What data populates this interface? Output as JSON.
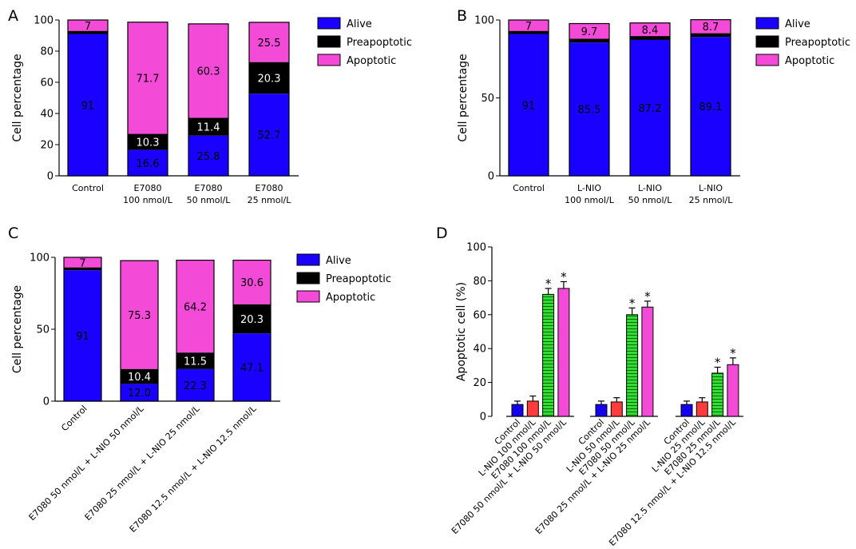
{
  "chart_data": [
    {
      "id": "A",
      "type": "bar",
      "stacked": true,
      "panel_label": "A",
      "ylabel": "Cell percentage",
      "ylim": [
        0,
        100
      ],
      "yticks": [
        0,
        20,
        40,
        60,
        80,
        100
      ],
      "categories": [
        [
          "Control"
        ],
        [
          "E7080",
          "100 nmol/L"
        ],
        [
          "E7080",
          "50 nmol/L"
        ],
        [
          "E7080",
          "25 nmol/L"
        ]
      ],
      "legend_position": "top-right",
      "series": [
        {
          "name": "Alive",
          "color": "#1a00ff",
          "values": [
            91,
            16.6,
            25.8,
            52.7
          ],
          "labels": [
            "91",
            "16.6",
            "25.8",
            "52.7"
          ]
        },
        {
          "name": "Preapoptotic",
          "color": "#000000",
          "values": [
            2,
            10.3,
            11.4,
            20.3
          ],
          "labels": [
            "",
            "10.3",
            "11.4",
            "20.3"
          ]
        },
        {
          "name": "Apoptotic",
          "color": "#f44ad8",
          "values": [
            7,
            71.7,
            60.3,
            25.5
          ],
          "labels": [
            "7",
            "71.7",
            "60.3",
            "25.5"
          ]
        }
      ]
    },
    {
      "id": "B",
      "type": "bar",
      "stacked": true,
      "panel_label": "B",
      "ylabel": "Cell percentage",
      "ylim": [
        0,
        100
      ],
      "yticks": [
        0,
        50,
        100
      ],
      "categories": [
        [
          "Control"
        ],
        [
          "L-NIO",
          "100 nmol/L"
        ],
        [
          "L-NIO",
          "50 nmol/L"
        ],
        [
          "L-NIO",
          "25 nmol/L"
        ]
      ],
      "legend_position": "top-right",
      "series": [
        {
          "name": "Alive",
          "color": "#1a00ff",
          "values": [
            91,
            85.5,
            87.2,
            89.1
          ],
          "labels": [
            "91",
            "85.5",
            "87.2",
            "89.1"
          ]
        },
        {
          "name": "Preapoptotic",
          "color": "#000000",
          "values": [
            2,
            2.5,
            2.5,
            2.4
          ],
          "labels": [
            "",
            "",
            "",
            ""
          ]
        },
        {
          "name": "Apoptotic",
          "color": "#f44ad8",
          "values": [
            7,
            9.7,
            8.4,
            8.7
          ],
          "labels": [
            "7",
            "9.7",
            "8.4",
            "8.7"
          ]
        }
      ]
    },
    {
      "id": "C",
      "type": "bar",
      "stacked": true,
      "panel_label": "C",
      "ylabel": "Cell percentage",
      "ylim": [
        0,
        100
      ],
      "yticks": [
        0,
        50,
        100
      ],
      "categories": [
        "Control",
        "E7080 50 nmol/L + L-NIO 50 nmol/L",
        "E7080 25 nmol/L + L-NIO 25 nmol/L",
        "E7080 12.5 nmol/L + L-NIO 12.5 nmol/L"
      ],
      "legend_position": "top-right",
      "series": [
        {
          "name": "Alive",
          "color": "#1a00ff",
          "values": [
            91,
            12.0,
            22.3,
            47.1
          ],
          "labels": [
            "91",
            "12.0",
            "22.3",
            "47.1"
          ]
        },
        {
          "name": "Preapoptotic",
          "color": "#000000",
          "values": [
            2,
            10.4,
            11.5,
            20.3
          ],
          "labels": [
            "",
            "10.4",
            "11.5",
            "20.3"
          ]
        },
        {
          "name": "Apoptotic",
          "color": "#f44ad8",
          "values": [
            7,
            75.3,
            64.2,
            30.6
          ],
          "labels": [
            "7",
            "75.3",
            "64.2",
            "30.6"
          ]
        }
      ]
    },
    {
      "id": "D",
      "type": "bar",
      "panel_label": "D",
      "ylabel": "Apoptotic cell (%)",
      "ylim": [
        0,
        100
      ],
      "yticks": [
        0,
        20,
        40,
        60,
        80,
        100
      ],
      "groups": [
        {
          "bars": [
            {
              "label": "Control",
              "value": 7,
              "error": 2,
              "color": "#1a00ff",
              "pattern": "hatch",
              "star": false
            },
            {
              "label": "L-NIO 100 nmol/L",
              "value": 9,
              "error": 3,
              "color": "#ff3b3b",
              "pattern": "solid",
              "star": false
            },
            {
              "label": "E7080 100 nmol/L",
              "value": 72,
              "error": 3.5,
              "color": "#33dd33",
              "pattern": "stripes",
              "star": true
            },
            {
              "label": "E7080 50 nmol/L + L-NIO 50 nmol/L",
              "value": 75.5,
              "error": 4,
              "color": "#f44ad8",
              "pattern": "solid",
              "star": true
            }
          ]
        },
        {
          "bars": [
            {
              "label": "Control",
              "value": 7,
              "error": 2,
              "color": "#1a00ff",
              "pattern": "hatch",
              "star": false
            },
            {
              "label": "L-NIO 50 nmol/L",
              "value": 8.5,
              "error": 2.5,
              "color": "#ff3b3b",
              "pattern": "solid",
              "star": false
            },
            {
              "label": "E7080 50 nmol/L",
              "value": 60,
              "error": 4,
              "color": "#33dd33",
              "pattern": "stripes",
              "star": true
            },
            {
              "label": "E7080 25 nmol/L + L-NIO 25 nmol/L",
              "value": 64.5,
              "error": 3.5,
              "color": "#f44ad8",
              "pattern": "solid",
              "star": true
            }
          ]
        },
        {
          "bars": [
            {
              "label": "Control",
              "value": 7,
              "error": 2,
              "color": "#1a00ff",
              "pattern": "hatch",
              "star": false
            },
            {
              "label": "L-NIO 25 nmol/L",
              "value": 8.5,
              "error": 2.5,
              "color": "#ff3b3b",
              "pattern": "solid",
              "star": false
            },
            {
              "label": "E7080 25 nmol/L",
              "value": 25.5,
              "error": 3.5,
              "color": "#33dd33",
              "pattern": "stripes",
              "star": true
            },
            {
              "label": "E7080 12.5 nmol/L + L-NIO 12.5 nmol/L",
              "value": 30.5,
              "error": 4,
              "color": "#f44ad8",
              "pattern": "solid",
              "star": true
            }
          ]
        }
      ],
      "star_symbol": "*"
    }
  ]
}
